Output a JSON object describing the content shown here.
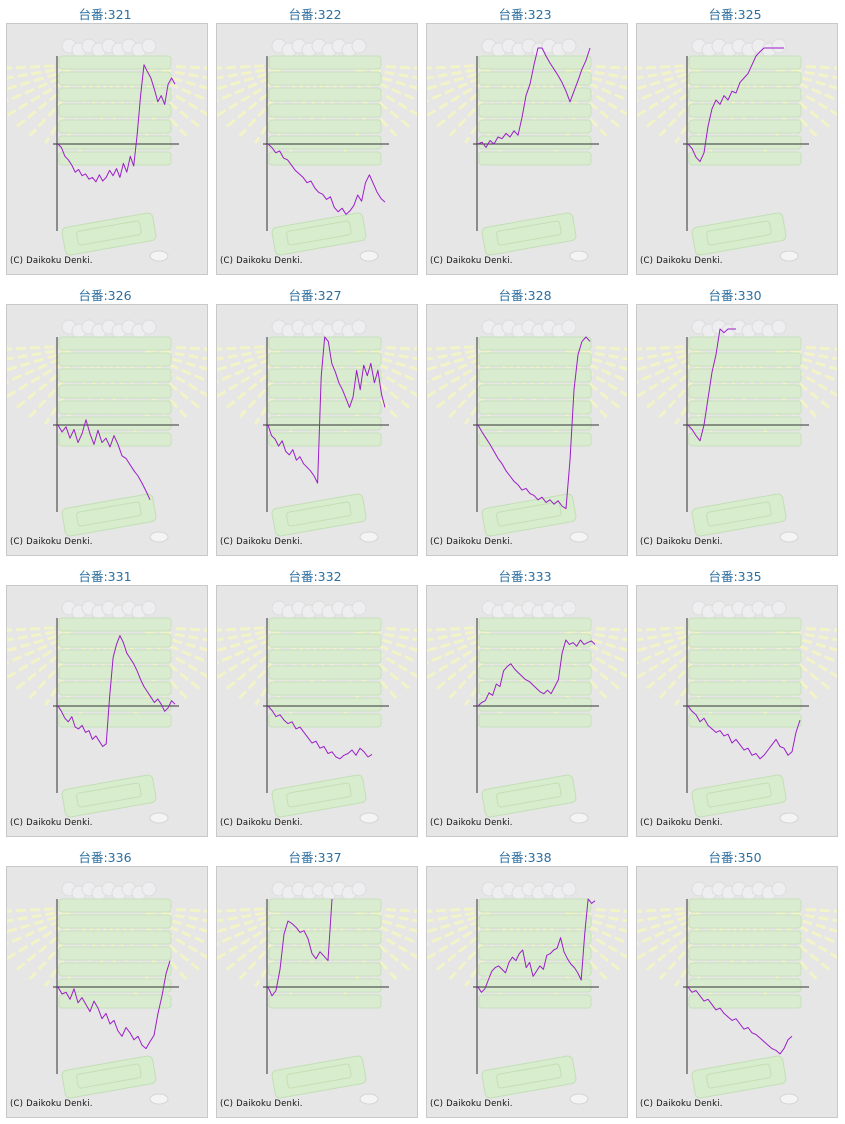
{
  "copyright": "(C) Daikoku Denki.",
  "line_color": "#9b1ec9",
  "axis_color": "#333333",
  "machines": [
    {
      "label": "台番:321"
    },
    {
      "label": "台番:322"
    },
    {
      "label": "台番:323"
    },
    {
      "label": "台番:325"
    },
    {
      "label": "台番:326"
    },
    {
      "label": "台番:327"
    },
    {
      "label": "台番:328"
    },
    {
      "label": "台番:330"
    },
    {
      "label": "台番:331"
    },
    {
      "label": "台番:332"
    },
    {
      "label": "台番:333"
    },
    {
      "label": "台番:335"
    },
    {
      "label": "台番:336"
    },
    {
      "label": "台番:337"
    },
    {
      "label": "台番:338"
    },
    {
      "label": "台番:350"
    }
  ],
  "chart_data": [
    {
      "type": "line",
      "series": [
        {
          "values": [
            0,
            -4,
            -14,
            -18,
            -24,
            -32,
            -29,
            -36,
            -34,
            -40,
            -38,
            -43,
            -35,
            -42,
            -38,
            -30,
            -36,
            -28,
            -38,
            -22,
            -32,
            -14,
            -25,
            10,
            55,
            90,
            82,
            75,
            62,
            48,
            55,
            45,
            68,
            75,
            68
          ]
        }
      ]
    },
    {
      "type": "line",
      "series": [
        {
          "values": [
            0,
            -4,
            -10,
            -8,
            -16,
            -18,
            -24,
            -30,
            -34,
            -38,
            -44,
            -42,
            -50,
            -55,
            -57,
            -63,
            -60,
            -72,
            -77,
            -73,
            -80,
            -76,
            -70,
            -58,
            -65,
            -44,
            -35,
            -45,
            -55,
            -62,
            -66
          ]
        }
      ]
    },
    {
      "type": "line",
      "series": [
        {
          "values": [
            0,
            2,
            -4,
            4,
            0,
            8,
            6,
            12,
            8,
            15,
            10,
            30,
            55,
            68,
            90,
            120,
            110,
            100,
            92,
            85,
            78,
            70,
            60,
            48,
            60,
            72,
            85,
            95,
            110
          ]
        }
      ]
    },
    {
      "type": "line",
      "series": [
        {
          "values": [
            0,
            -5,
            -15,
            -20,
            -10,
            20,
            40,
            50,
            45,
            55,
            50,
            60,
            58,
            70,
            75,
            80,
            90,
            100,
            105,
            112,
            115,
            120,
            122,
            125,
            118
          ]
        }
      ]
    },
    {
      "type": "line",
      "series": [
        {
          "values": [
            0,
            -8,
            -2,
            -15,
            -5,
            -20,
            -10,
            6,
            -10,
            -22,
            -6,
            -20,
            -15,
            -25,
            -12,
            -22,
            -35,
            -38,
            -45,
            -52,
            -58,
            -66,
            -75,
            -85
          ]
        }
      ]
    },
    {
      "type": "line",
      "series": [
        {
          "values": [
            0,
            -12,
            -16,
            -24,
            -18,
            -30,
            -34,
            -28,
            -40,
            -36,
            -44,
            -48,
            -52,
            -58,
            -66,
            55,
            100,
            95,
            70,
            60,
            48,
            40,
            30,
            20,
            32,
            62,
            40,
            68,
            56,
            70,
            48,
            62,
            35,
            20
          ]
        }
      ]
    },
    {
      "type": "line",
      "series": [
        {
          "values": [
            0,
            -8,
            -15,
            -22,
            -30,
            -38,
            -44,
            -52,
            -58,
            -64,
            -68,
            -74,
            -72,
            -78,
            -80,
            -85,
            -82,
            -88,
            -85,
            -90,
            -86,
            -92,
            -95,
            -40,
            40,
            80,
            95,
            100,
            95
          ]
        }
      ]
    },
    {
      "type": "line",
      "series": [
        {
          "values": [
            0,
            -5,
            -12,
            -18,
            0,
            30,
            60,
            80,
            110,
            105,
            115,
            122,
            130
          ]
        }
      ]
    },
    {
      "type": "line",
      "series": [
        {
          "values": [
            0,
            -6,
            -14,
            -18,
            -12,
            -24,
            -26,
            -22,
            -30,
            -28,
            -38,
            -34,
            -40,
            -46,
            -43,
            10,
            55,
            70,
            80,
            72,
            60,
            54,
            48,
            40,
            30,
            22,
            16,
            10,
            4,
            8,
            2,
            -6,
            -2,
            6,
            2
          ]
        }
      ]
    },
    {
      "type": "line",
      "series": [
        {
          "values": [
            0,
            -5,
            -12,
            -10,
            -16,
            -20,
            -18,
            -26,
            -24,
            -30,
            -36,
            -42,
            -40,
            -48,
            -46,
            -54,
            -52,
            -58,
            -60,
            -56,
            -54,
            -50,
            -56,
            -48,
            -52,
            -58,
            -55
          ]
        }
      ]
    },
    {
      "type": "line",
      "series": [
        {
          "values": [
            0,
            4,
            6,
            15,
            12,
            25,
            22,
            40,
            45,
            48,
            42,
            38,
            34,
            30,
            28,
            24,
            20,
            16,
            14,
            18,
            14,
            22,
            30,
            60,
            75,
            70,
            72,
            68,
            75,
            70,
            72,
            74,
            70
          ]
        }
      ]
    },
    {
      "type": "line",
      "series": [
        {
          "values": [
            0,
            -6,
            -10,
            -18,
            -14,
            -22,
            -26,
            -30,
            -28,
            -34,
            -32,
            -42,
            -38,
            -44,
            -50,
            -48,
            -56,
            -54,
            -60,
            -56,
            -50,
            -44,
            -38,
            -46,
            -48,
            -56,
            -52,
            -30,
            -16
          ]
        }
      ]
    },
    {
      "type": "line",
      "series": [
        {
          "values": [
            0,
            -8,
            -6,
            -14,
            -2,
            -18,
            -12,
            -20,
            -28,
            -16,
            -24,
            -36,
            -30,
            -42,
            -38,
            -50,
            -56,
            -46,
            -52,
            -60,
            -56,
            -66,
            -70,
            -62,
            -55,
            -30,
            -10,
            15,
            30
          ]
        }
      ]
    },
    {
      "type": "line",
      "series": [
        {
          "values": [
            0,
            -10,
            -4,
            20,
            60,
            75,
            72,
            68,
            62,
            64,
            55,
            38,
            32,
            40,
            35,
            30,
            100
          ]
        }
      ]
    },
    {
      "type": "line",
      "series": [
        {
          "values": [
            0,
            -6,
            -2,
            8,
            18,
            22,
            24,
            20,
            16,
            28,
            34,
            30,
            38,
            42,
            22,
            28,
            12,
            18,
            24,
            20,
            36,
            38,
            42,
            44,
            56,
            40,
            32,
            26,
            22,
            16,
            8,
            60,
            100,
            95,
            98
          ]
        }
      ]
    },
    {
      "type": "line",
      "series": [
        {
          "values": [
            0,
            -6,
            -4,
            -10,
            -16,
            -14,
            -20,
            -26,
            -24,
            -30,
            -34,
            -38,
            -36,
            -42,
            -48,
            -46,
            -52,
            -54,
            -58,
            -62,
            -66,
            -70,
            -72,
            -76,
            -70,
            -60,
            -56
          ]
        }
      ]
    }
  ]
}
